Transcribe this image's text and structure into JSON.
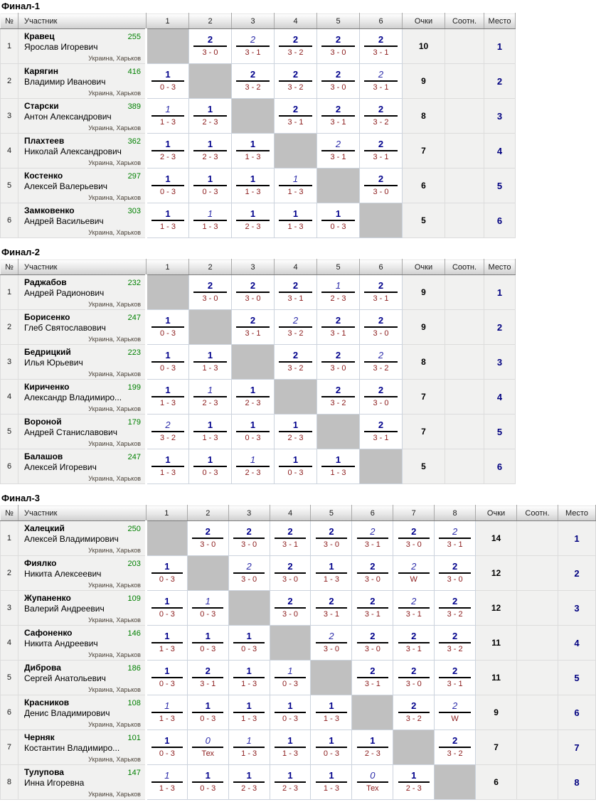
{
  "colors": {
    "win_number_navy": "#00008b",
    "italic_number_navy": "#2d2daa",
    "score_dark_red": "#8b1a1a",
    "rating_green": "#008000",
    "place_navy": "#000080",
    "self_cell_gray": "#c0c0c0",
    "info_cell_bg": "#f1f1f0"
  },
  "tables": [
    {
      "title": "Финал-1",
      "headers": {
        "num": "№",
        "participant": "Участник",
        "match_cols": [
          "1",
          "2",
          "3",
          "4",
          "5",
          "6"
        ],
        "points": "Очки",
        "ratio": "Соотн.",
        "place": "Место"
      },
      "rows": [
        {
          "num": "1",
          "surname": "Кравец",
          "rating": "255",
          "name": "Ярослав Игоревич",
          "location": "Украина, Харьков",
          "cells": [
            {
              "s": true
            },
            {
              "t": "2",
              "b": "3 - 0"
            },
            {
              "t": "2",
              "b": "3 - 1",
              "i": true
            },
            {
              "t": "2",
              "b": "3 - 2"
            },
            {
              "t": "2",
              "b": "3 - 0"
            },
            {
              "t": "2",
              "b": "3 - 1"
            }
          ],
          "points": "10",
          "ratio": "",
          "place": "1"
        },
        {
          "num": "2",
          "surname": "Карягин",
          "rating": "416",
          "name": "Владимир Иванович",
          "location": "Украина, Харьков",
          "cells": [
            {
              "t": "1",
              "b": "0 - 3"
            },
            {
              "s": true
            },
            {
              "t": "2",
              "b": "3 - 2"
            },
            {
              "t": "2",
              "b": "3 - 2"
            },
            {
              "t": "2",
              "b": "3 - 0"
            },
            {
              "t": "2",
              "b": "3 - 1",
              "i": true
            }
          ],
          "points": "9",
          "ratio": "",
          "place": "2"
        },
        {
          "num": "3",
          "surname": "Старски",
          "rating": "389",
          "name": "Антон Александрович",
          "location": "Украина, Харьков",
          "cells": [
            {
              "t": "1",
              "b": "1 - 3",
              "i": true
            },
            {
              "t": "1",
              "b": "2 - 3"
            },
            {
              "s": true
            },
            {
              "t": "2",
              "b": "3 - 1"
            },
            {
              "t": "2",
              "b": "3 - 1"
            },
            {
              "t": "2",
              "b": "3 - 2"
            }
          ],
          "points": "8",
          "ratio": "",
          "place": "3"
        },
        {
          "num": "4",
          "surname": "Плахтеев",
          "rating": "362",
          "name": "Николай Александрович",
          "location": "Украина, Харьков",
          "cells": [
            {
              "t": "1",
              "b": "2 - 3"
            },
            {
              "t": "1",
              "b": "2 - 3"
            },
            {
              "t": "1",
              "b": "1 - 3"
            },
            {
              "s": true
            },
            {
              "t": "2",
              "b": "3 - 1",
              "i": true
            },
            {
              "t": "2",
              "b": "3 - 1"
            }
          ],
          "points": "7",
          "ratio": "",
          "place": "4"
        },
        {
          "num": "5",
          "surname": "Костенко",
          "rating": "297",
          "name": "Алексей Валерьевич",
          "location": "Украина, Харьков",
          "cells": [
            {
              "t": "1",
              "b": "0 - 3"
            },
            {
              "t": "1",
              "b": "0 - 3"
            },
            {
              "t": "1",
              "b": "1 - 3"
            },
            {
              "t": "1",
              "b": "1 - 3",
              "i": true
            },
            {
              "s": true
            },
            {
              "t": "2",
              "b": "3 - 0"
            }
          ],
          "points": "6",
          "ratio": "",
          "place": "5"
        },
        {
          "num": "6",
          "surname": "Замковенко",
          "rating": "303",
          "name": "Андрей Васильевич",
          "location": "Украина, Харьков",
          "cells": [
            {
              "t": "1",
              "b": "1 - 3"
            },
            {
              "t": "1",
              "b": "1 - 3",
              "i": true
            },
            {
              "t": "1",
              "b": "2 - 3"
            },
            {
              "t": "1",
              "b": "1 - 3"
            },
            {
              "t": "1",
              "b": "0 - 3"
            },
            {
              "s": true
            }
          ],
          "points": "5",
          "ratio": "",
          "place": "6"
        }
      ]
    },
    {
      "title": "Финал-2",
      "headers": {
        "num": "№",
        "participant": "Участник",
        "match_cols": [
          "1",
          "2",
          "3",
          "4",
          "5",
          "6"
        ],
        "points": "Очки",
        "ratio": "Соотн.",
        "place": "Место"
      },
      "rows": [
        {
          "num": "1",
          "surname": "Раджабов",
          "rating": "232",
          "name": "Андрей Радионович",
          "location": "Украина, Харьков",
          "cells": [
            {
              "s": true
            },
            {
              "t": "2",
              "b": "3 - 0"
            },
            {
              "t": "2",
              "b": "3 - 0"
            },
            {
              "t": "2",
              "b": "3 - 1"
            },
            {
              "t": "1",
              "b": "2 - 3",
              "i": true
            },
            {
              "t": "2",
              "b": "3 - 1"
            }
          ],
          "points": "9",
          "ratio": "",
          "place": "1"
        },
        {
          "num": "2",
          "surname": "Борисенко",
          "rating": "247",
          "name": "Глеб Святославович",
          "location": "Украина, Харьков",
          "cells": [
            {
              "t": "1",
              "b": "0 - 3"
            },
            {
              "s": true
            },
            {
              "t": "2",
              "b": "3 - 1"
            },
            {
              "t": "2",
              "b": "3 - 2",
              "i": true
            },
            {
              "t": "2",
              "b": "3 - 1"
            },
            {
              "t": "2",
              "b": "3 - 0"
            }
          ],
          "points": "9",
          "ratio": "",
          "place": "2"
        },
        {
          "num": "3",
          "surname": "Бедрицкий",
          "rating": "223",
          "name": "Илья Юрьевич",
          "location": "Украина, Харьков",
          "cells": [
            {
              "t": "1",
              "b": "0 - 3"
            },
            {
              "t": "1",
              "b": "1 - 3"
            },
            {
              "s": true
            },
            {
              "t": "2",
              "b": "3 - 2"
            },
            {
              "t": "2",
              "b": "3 - 0"
            },
            {
              "t": "2",
              "b": "3 - 2",
              "i": true
            }
          ],
          "points": "8",
          "ratio": "",
          "place": "3"
        },
        {
          "num": "4",
          "surname": "Кириченко",
          "rating": "199",
          "name": "Александр Владимиро...",
          "location": "Украина, Харьков",
          "cells": [
            {
              "t": "1",
              "b": "1 - 3"
            },
            {
              "t": "1",
              "b": "2 - 3",
              "i": true
            },
            {
              "t": "1",
              "b": "2 - 3"
            },
            {
              "s": true
            },
            {
              "t": "2",
              "b": "3 - 2"
            },
            {
              "t": "2",
              "b": "3 - 0"
            }
          ],
          "points": "7",
          "ratio": "",
          "place": "4"
        },
        {
          "num": "5",
          "surname": "Вороной",
          "rating": "179",
          "name": "Андрей Станиславович",
          "location": "Украина, Харьков",
          "cells": [
            {
              "t": "2",
              "b": "3 - 2",
              "i": true
            },
            {
              "t": "1",
              "b": "1 - 3"
            },
            {
              "t": "1",
              "b": "0 - 3"
            },
            {
              "t": "1",
              "b": "2 - 3"
            },
            {
              "s": true
            },
            {
              "t": "2",
              "b": "3 - 1"
            }
          ],
          "points": "7",
          "ratio": "",
          "place": "5"
        },
        {
          "num": "6",
          "surname": "Балашов",
          "rating": "247",
          "name": "Алексей Игоревич",
          "location": "Украина, Харьков",
          "cells": [
            {
              "t": "1",
              "b": "1 - 3"
            },
            {
              "t": "1",
              "b": "0 - 3"
            },
            {
              "t": "1",
              "b": "2 - 3",
              "i": true
            },
            {
              "t": "1",
              "b": "0 - 3"
            },
            {
              "t": "1",
              "b": "1 - 3"
            },
            {
              "s": true
            }
          ],
          "points": "5",
          "ratio": "",
          "place": "6"
        }
      ]
    },
    {
      "title": "Финал-3",
      "headers": {
        "num": "№",
        "participant": "Участник",
        "match_cols": [
          "1",
          "2",
          "3",
          "4",
          "5",
          "6",
          "7",
          "8"
        ],
        "points": "Очки",
        "ratio": "Соотн.",
        "place": "Место"
      },
      "rows": [
        {
          "num": "1",
          "surname": "Халецкий",
          "rating": "250",
          "name": "Алексей Владимирович",
          "location": "Украина, Харьков",
          "cells": [
            {
              "s": true
            },
            {
              "t": "2",
              "b": "3 - 0"
            },
            {
              "t": "2",
              "b": "3 - 0"
            },
            {
              "t": "2",
              "b": "3 - 1"
            },
            {
              "t": "2",
              "b": "3 - 0"
            },
            {
              "t": "2",
              "b": "3 - 1",
              "i": true
            },
            {
              "t": "2",
              "b": "3 - 0"
            },
            {
              "t": "2",
              "b": "3 - 1",
              "i": true
            }
          ],
          "points": "14",
          "ratio": "",
          "place": "1"
        },
        {
          "num": "2",
          "surname": "Фиялко",
          "rating": "203",
          "name": "Никита Алексеевич",
          "location": "Украина, Харьков",
          "cells": [
            {
              "t": "1",
              "b": "0 - 3"
            },
            {
              "s": true
            },
            {
              "t": "2",
              "b": "3 - 0",
              "i": true
            },
            {
              "t": "2",
              "b": "3 - 0"
            },
            {
              "t": "1",
              "b": "1 - 3"
            },
            {
              "t": "2",
              "b": "3 - 0"
            },
            {
              "t": "2",
              "b": "W",
              "i": true
            },
            {
              "t": "2",
              "b": "3 - 0"
            }
          ],
          "points": "12",
          "ratio": "",
          "place": "2"
        },
        {
          "num": "3",
          "surname": "Жупаненко",
          "rating": "109",
          "name": "Валерий Андреевич",
          "location": "Украина, Харьков",
          "cells": [
            {
              "t": "1",
              "b": "0 - 3"
            },
            {
              "t": "1",
              "b": "0 - 3",
              "i": true
            },
            {
              "s": true
            },
            {
              "t": "2",
              "b": "3 - 0"
            },
            {
              "t": "2",
              "b": "3 - 1"
            },
            {
              "t": "2",
              "b": "3 - 1"
            },
            {
              "t": "2",
              "b": "3 - 1",
              "i": true
            },
            {
              "t": "2",
              "b": "3 - 2"
            }
          ],
          "points": "12",
          "ratio": "",
          "place": "3"
        },
        {
          "num": "4",
          "surname": "Сафоненко",
          "rating": "146",
          "name": "Никита Андреевич",
          "location": "Украина, Харьков",
          "cells": [
            {
              "t": "1",
              "b": "1 - 3"
            },
            {
              "t": "1",
              "b": "0 - 3"
            },
            {
              "t": "1",
              "b": "0 - 3"
            },
            {
              "s": true
            },
            {
              "t": "2",
              "b": "3 - 0",
              "i": true
            },
            {
              "t": "2",
              "b": "3 - 0"
            },
            {
              "t": "2",
              "b": "3 - 1"
            },
            {
              "t": "2",
              "b": "3 - 2"
            }
          ],
          "points": "11",
          "ratio": "",
          "place": "4"
        },
        {
          "num": "5",
          "surname": "Диброва",
          "rating": "186",
          "name": "Сергей Анатольевич",
          "location": "Украина, Харьков",
          "cells": [
            {
              "t": "1",
              "b": "0 - 3"
            },
            {
              "t": "2",
              "b": "3 - 1"
            },
            {
              "t": "1",
              "b": "1 - 3"
            },
            {
              "t": "1",
              "b": "0 - 3",
              "i": true
            },
            {
              "s": true
            },
            {
              "t": "2",
              "b": "3 - 1"
            },
            {
              "t": "2",
              "b": "3 - 0"
            },
            {
              "t": "2",
              "b": "3 - 1"
            }
          ],
          "points": "11",
          "ratio": "",
          "place": "5"
        },
        {
          "num": "6",
          "surname": "Красников",
          "rating": "108",
          "name": "Денис Владимирович",
          "location": "Украина, Харьков",
          "cells": [
            {
              "t": "1",
              "b": "1 - 3",
              "i": true
            },
            {
              "t": "1",
              "b": "0 - 3"
            },
            {
              "t": "1",
              "b": "1 - 3"
            },
            {
              "t": "1",
              "b": "0 - 3"
            },
            {
              "t": "1",
              "b": "1 - 3"
            },
            {
              "s": true
            },
            {
              "t": "2",
              "b": "3 - 2"
            },
            {
              "t": "2",
              "b": "W",
              "i": true
            }
          ],
          "points": "9",
          "ratio": "",
          "place": "6"
        },
        {
          "num": "7",
          "surname": "Черняк",
          "rating": "101",
          "name": "Костантин Владимиро...",
          "location": "Украина, Харьков",
          "cells": [
            {
              "t": "1",
              "b": "0 - 3"
            },
            {
              "t": "0",
              "b": "Тех",
              "i": true
            },
            {
              "t": "1",
              "b": "1 - 3",
              "i": true
            },
            {
              "t": "1",
              "b": "1 - 3"
            },
            {
              "t": "1",
              "b": "0 - 3"
            },
            {
              "t": "1",
              "b": "2 - 3"
            },
            {
              "s": true
            },
            {
              "t": "2",
              "b": "3 - 2"
            }
          ],
          "points": "7",
          "ratio": "",
          "place": "7"
        },
        {
          "num": "8",
          "surname": "Тулупова",
          "rating": "147",
          "name": "Инна Игоревна",
          "location": "Украина, Харьков",
          "cells": [
            {
              "t": "1",
              "b": "1 - 3",
              "i": true
            },
            {
              "t": "1",
              "b": "0 - 3"
            },
            {
              "t": "1",
              "b": "2 - 3"
            },
            {
              "t": "1",
              "b": "2 - 3"
            },
            {
              "t": "1",
              "b": "1 - 3"
            },
            {
              "t": "0",
              "b": "Тех",
              "i": true
            },
            {
              "t": "1",
              "b": "2 - 3"
            },
            {
              "s": true
            }
          ],
          "points": "6",
          "ratio": "",
          "place": "8"
        }
      ]
    }
  ]
}
